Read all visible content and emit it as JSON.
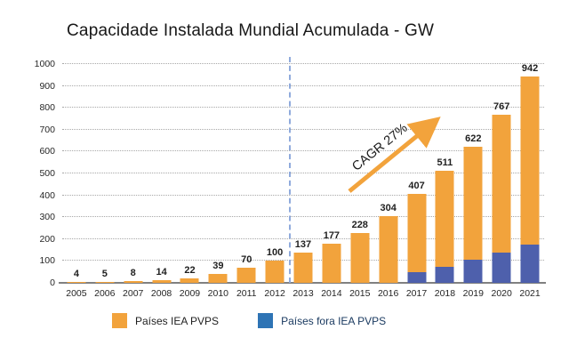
{
  "title": "Capacidade Instalada Mundial Acumulada - GW",
  "colors": {
    "bar_orange": "#f2a33c",
    "bar_blue": "#4e60ac",
    "legend_blue": "#2e74b5",
    "gridline": "#a8a8a8",
    "axis_line": "#808080",
    "divider_blue": "#8faadc",
    "arrow_orange": "#f2a33c"
  },
  "chart_data": {
    "type": "bar",
    "stacked": true,
    "title": "Capacidade Instalada Mundial Acumulada - GW",
    "xlabel": "",
    "ylabel": "",
    "ylim": [
      0,
      1000
    ],
    "ytick_step": 100,
    "yticks": [
      "0",
      "100",
      "200",
      "300",
      "400",
      "500",
      "600",
      "700",
      "800",
      "900",
      "1000"
    ],
    "grid": "horizontal-dotted",
    "categories": [
      "2005",
      "2006",
      "2007",
      "2008",
      "2009",
      "2010",
      "2011",
      "2012",
      "2013",
      "2014",
      "2015",
      "2016",
      "2017",
      "2018",
      "2019",
      "2020",
      "2021"
    ],
    "totals": [
      4,
      5,
      8,
      14,
      22,
      39,
      70,
      100,
      137,
      177,
      228,
      304,
      407,
      511,
      622,
      767,
      942
    ],
    "bar_labels": [
      "4",
      "5",
      "8",
      "14",
      "22",
      "39",
      "70",
      "100",
      "137",
      "177",
      "228",
      "304",
      "407",
      "511",
      "622",
      "767",
      "942"
    ],
    "series": [
      {
        "name": "Países IEA PVPS",
        "color": "#f2a33c",
        "values": [
          4,
          5,
          8,
          14,
          22,
          39,
          70,
          100,
          137,
          177,
          228,
          304,
          357,
          436,
          517,
          627,
          767
        ]
      },
      {
        "name": "Países fora IEA PVPS",
        "color": "#4e60ac",
        "values": [
          0,
          0,
          0,
          0,
          0,
          0,
          0,
          0,
          0,
          0,
          0,
          0,
          50,
          75,
          105,
          140,
          175
        ]
      }
    ],
    "divider_after_category": "2012",
    "annotation": {
      "text": "CAGR 27%"
    },
    "legend_position": "bottom",
    "legend": [
      {
        "label": "Países IEA PVPS",
        "color": "#f2a33c"
      },
      {
        "label": "Países fora IEA PVPS",
        "color": "#2e74b5"
      }
    ]
  }
}
